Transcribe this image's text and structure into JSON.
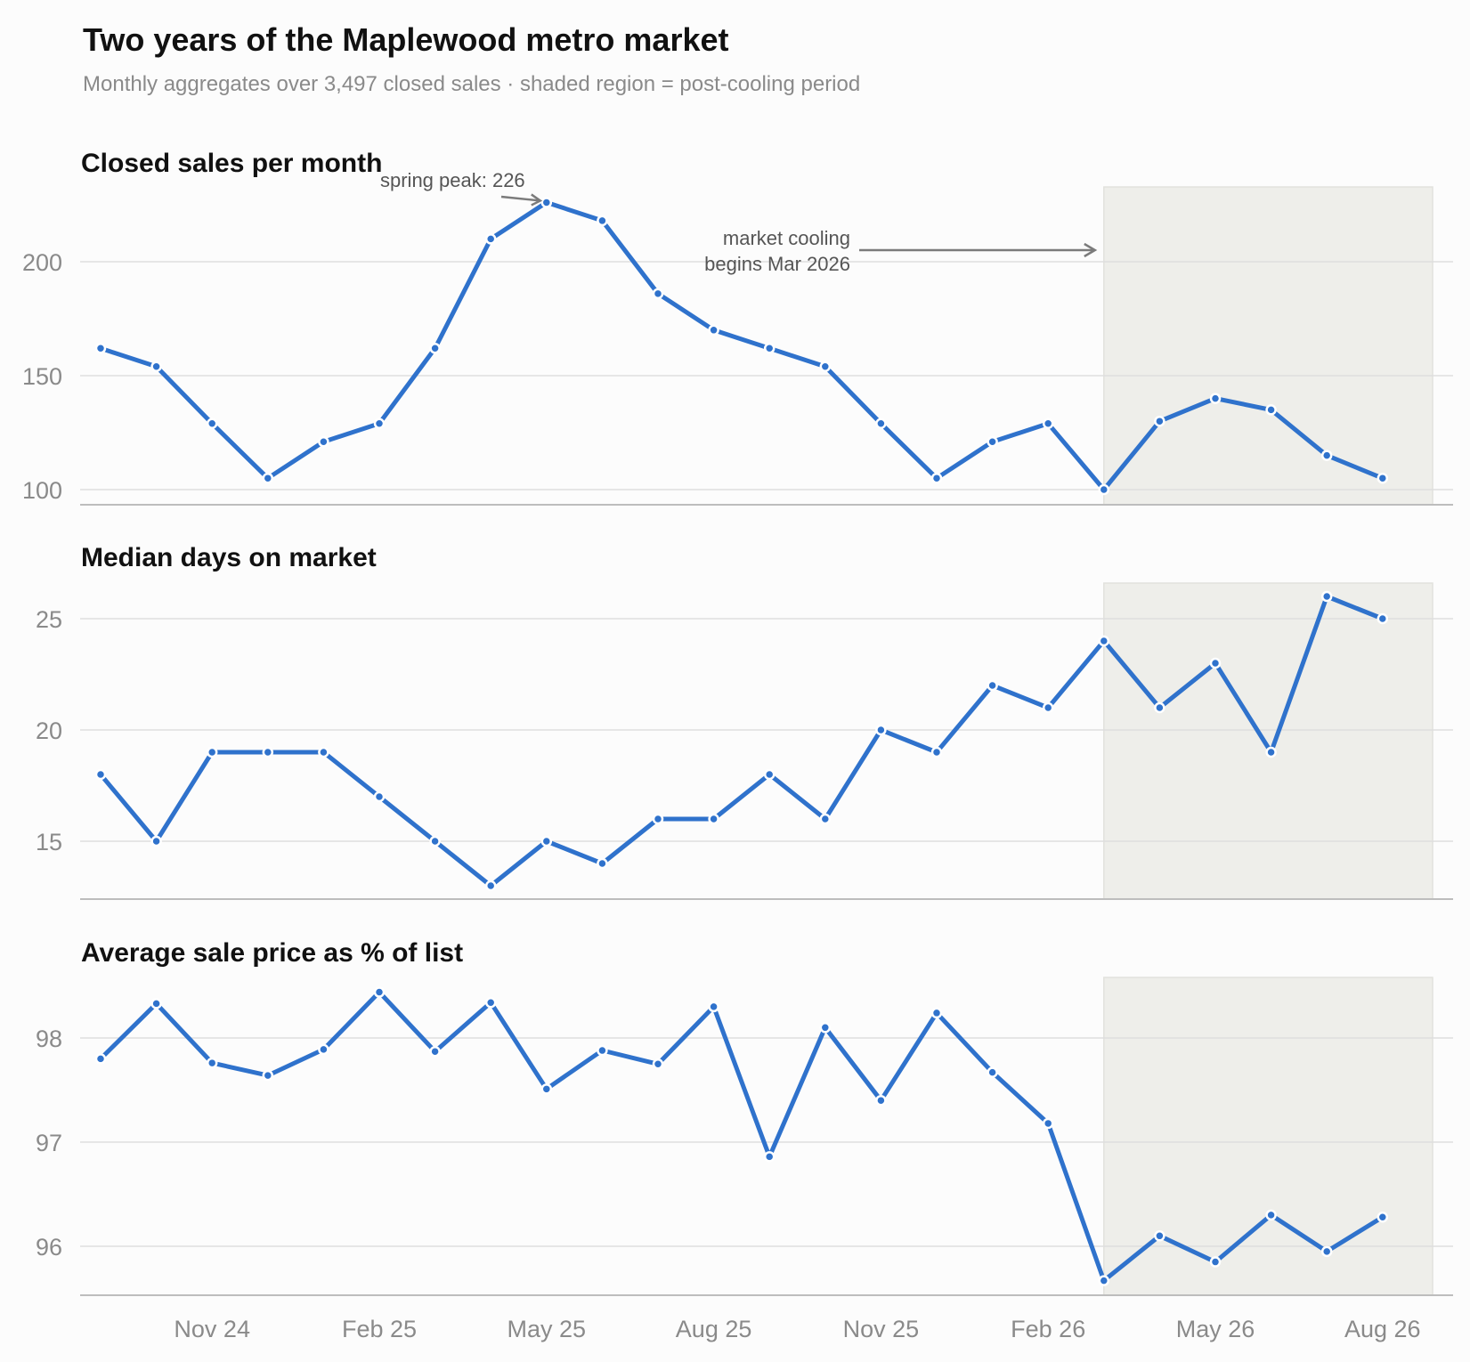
{
  "title": "Two years of the Maplewood metro market",
  "subtitle": "Monthly aggregates over 3,497 closed sales · shaded region = post-cooling period",
  "colors": {
    "series": "#2f72cc",
    "shade": "#eeeeea",
    "grid": "#dedede",
    "annotation": "#555555"
  },
  "chart_data": [
    {
      "type": "line",
      "title": "Closed sales per month",
      "x": [
        "Sep 24",
        "Oct 24",
        "Nov 24",
        "Dec 24",
        "Jan 25",
        "Feb 25",
        "Mar 25",
        "Apr 25",
        "May 25",
        "Jun 25",
        "Jul 25",
        "Aug 25",
        "Sep 25",
        "Oct 25",
        "Nov 25",
        "Dec 25",
        "Jan 26",
        "Feb 26",
        "Mar 26",
        "Apr 26",
        "May 26",
        "Jun 26",
        "Jul 26",
        "Aug 26"
      ],
      "values": [
        162,
        154,
        129,
        105,
        121,
        129,
        162,
        210,
        226,
        218,
        186,
        170,
        162,
        154,
        129,
        105,
        121,
        129,
        100,
        130,
        140,
        135,
        115,
        105
      ],
      "ylim": [
        100,
        226
      ],
      "yticks": [
        100,
        150,
        200
      ],
      "shaded_from": "Mar 26",
      "annotations": [
        {
          "text": "spring peak: 226",
          "x": "May 25",
          "y": 226
        },
        {
          "text_lines": [
            "market cooling",
            "begins Mar 2026"
          ],
          "x": "Mar 26"
        }
      ]
    },
    {
      "type": "line",
      "title": "Median days on market",
      "x": [
        "Sep 24",
        "Oct 24",
        "Nov 24",
        "Dec 24",
        "Jan 25",
        "Feb 25",
        "Mar 25",
        "Apr 25",
        "May 25",
        "Jun 25",
        "Jul 25",
        "Aug 25",
        "Sep 25",
        "Oct 25",
        "Nov 25",
        "Dec 25",
        "Jan 26",
        "Feb 26",
        "Mar 26",
        "Apr 26",
        "May 26",
        "Jun 26",
        "Jul 26",
        "Aug 26"
      ],
      "values": [
        18,
        15,
        19,
        19,
        19,
        17,
        15,
        13,
        15,
        14,
        16,
        16,
        18,
        16,
        20,
        19,
        22,
        21,
        24,
        21,
        23,
        19,
        26,
        25
      ],
      "ylim": [
        13,
        26
      ],
      "yticks": [
        15,
        20,
        25
      ],
      "shaded_from": "Mar 26"
    },
    {
      "type": "line",
      "title": "Average sale price as % of list",
      "x": [
        "Sep 24",
        "Oct 24",
        "Nov 24",
        "Dec 24",
        "Jan 25",
        "Feb 25",
        "Mar 25",
        "Apr 25",
        "May 25",
        "Jun 25",
        "Jul 25",
        "Aug 25",
        "Sep 25",
        "Oct 25",
        "Nov 25",
        "Dec 25",
        "Jan 26",
        "Feb 26",
        "Mar 26",
        "Apr 26",
        "May 26",
        "Jun 26",
        "Jul 26",
        "Aug 26"
      ],
      "values": [
        97.8,
        98.33,
        97.76,
        97.64,
        97.89,
        98.44,
        97.87,
        98.34,
        97.51,
        97.88,
        97.75,
        98.3,
        96.86,
        98.1,
        97.4,
        98.24,
        97.67,
        97.18,
        95.67,
        96.1,
        95.85,
        96.3,
        95.95,
        96.28
      ],
      "ylim": [
        95.67,
        98.44
      ],
      "yticks": [
        96,
        97,
        98
      ],
      "shaded_from": "Mar 26"
    }
  ],
  "xaxis": {
    "tick_labels": [
      "Nov 24",
      "Feb 25",
      "May 25",
      "Aug 25",
      "Nov 25",
      "Feb 26",
      "May 26",
      "Aug 26"
    ]
  }
}
